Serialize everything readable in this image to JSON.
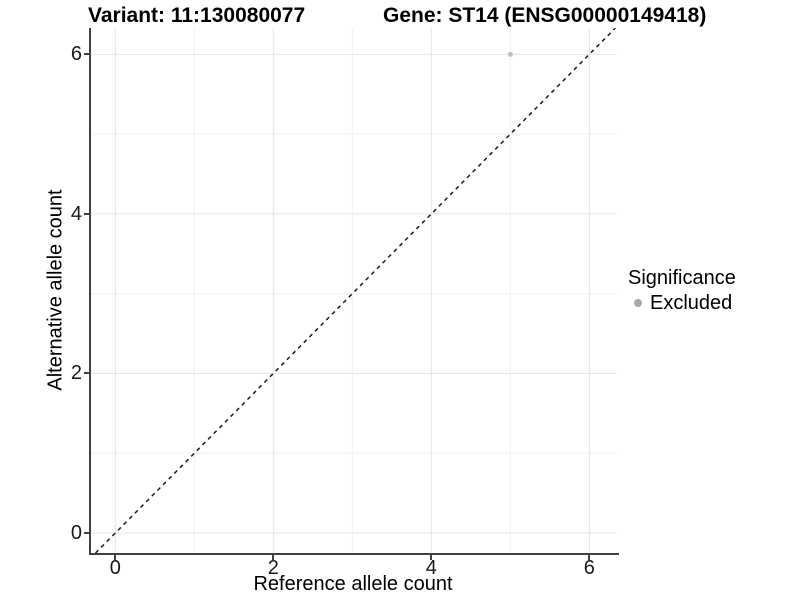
{
  "chart_data": {
    "type": "scatter",
    "title_left": "Variant: 11:130080077",
    "title_right": "Gene: ST14 (ENSG00000149418)",
    "xlabel": "Reference allele count",
    "ylabel": "Alternative allele count",
    "xlim": [
      -0.32,
      6.35
    ],
    "ylim": [
      -0.25,
      6.33
    ],
    "x_major_ticks": [
      0,
      2,
      4,
      6
    ],
    "y_major_ticks": [
      0,
      2,
      4,
      6
    ],
    "x_minor_gridlines": [
      1,
      3,
      5
    ],
    "y_minor_gridlines": [
      1,
      3,
      5
    ],
    "grid": true,
    "series": [
      {
        "name": "Excluded",
        "color": "#c0c0c0",
        "points": [
          {
            "x": 5,
            "y": 6
          }
        ]
      }
    ],
    "reference_line": {
      "equation": "y = x",
      "style": "dashed",
      "color": "#1a1a1a"
    },
    "legend": {
      "position": "right",
      "title": "Significance",
      "items": [
        {
          "label": "Excluded",
          "marker_color": "#a8a8a8"
        }
      ]
    },
    "colors": {
      "background": "#ffffff",
      "axis": "#404040",
      "tick_label": "#1a1a1a",
      "grid_major": "#e5e5e5",
      "grid_minor": "#f0f0f0"
    }
  }
}
